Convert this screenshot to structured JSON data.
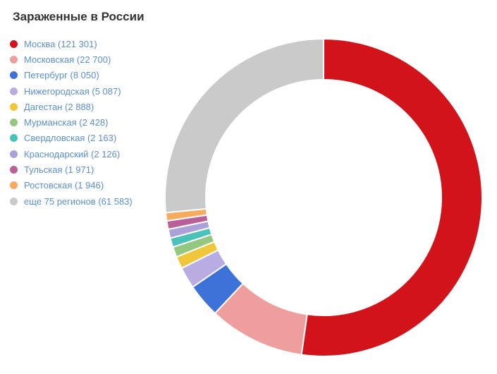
{
  "chart_data": {
    "type": "pie",
    "subtype": "donut",
    "title": "Зараженные в России",
    "legend_position": "left",
    "gap_color": "#ffffff",
    "slices": [
      {
        "label": "Москва",
        "value": 121301,
        "display": "Москва (121 301)",
        "color": "#d2131a"
      },
      {
        "label": "Московская",
        "value": 22700,
        "display": "Московская (22 700)",
        "color": "#ee9f9d"
      },
      {
        "label": "Петербург",
        "value": 8050,
        "display": "Петербург (8 050)",
        "color": "#3d73d9"
      },
      {
        "label": "Нижегородская",
        "value": 5087,
        "display": "Нижегородская (5 087)",
        "color": "#b8ace2"
      },
      {
        "label": "Дагестан",
        "value": 2888,
        "display": "Дагестан (2 888)",
        "color": "#f0c63a"
      },
      {
        "label": "Мурманская",
        "value": 2428,
        "display": "Мурманская (2 428)",
        "color": "#94c77f"
      },
      {
        "label": "Свердловская",
        "value": 2163,
        "display": "Свердловская (2 163)",
        "color": "#4ac1ba"
      },
      {
        "label": "Краснодарский",
        "value": 2126,
        "display": "Краснодарский (2 126)",
        "color": "#aba1d8"
      },
      {
        "label": "Тульская",
        "value": 1971,
        "display": "Тульская (1 971)",
        "color": "#b95f9a"
      },
      {
        "label": "Ростовская",
        "value": 1946,
        "display": "Ростовская (1 946)",
        "color": "#f7ab5e"
      },
      {
        "label": "еще 75 регионов",
        "value": 61583,
        "display": "еще 75 регионов (61 583)",
        "color": "#cacaca"
      }
    ]
  }
}
